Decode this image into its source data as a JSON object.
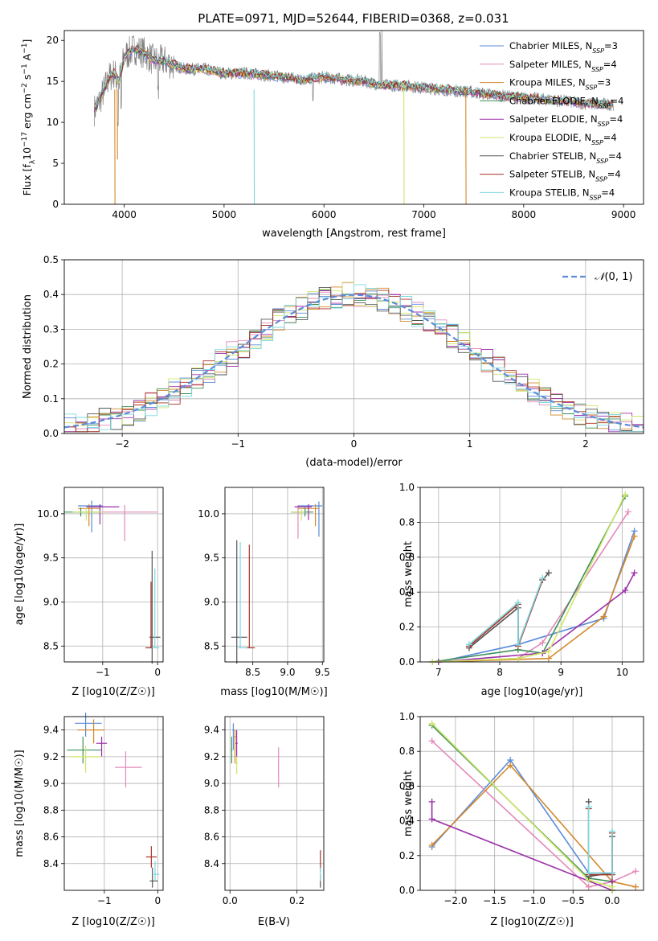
{
  "figure": {
    "title": "PLATE=0971, MJD=52644, FIBERID=0368, z=0.031"
  },
  "model_names": [
    "Chabrier MILES",
    "Salpeter MILES",
    "Kroupa MILES",
    "Chabrier ELODIE",
    "Salpeter ELODIE",
    "Kroupa ELODIE",
    "Chabrier STELIB",
    "Salpeter STELIB",
    "Kroupa STELIB"
  ],
  "model_nssp": [
    3,
    4,
    3,
    4,
    4,
    4,
    4,
    4,
    4
  ],
  "model_colors": [
    "#5b8bd9",
    "#e389b9",
    "#d4882a",
    "#3d8f58",
    "#9b30a8",
    "#cfe66a",
    "#555555",
    "#a83225",
    "#7dd8df"
  ],
  "chart_data": [
    {
      "type": "line",
      "title": "PLATE=0971, MJD=52644, FIBERID=0368, z=0.031",
      "xlabel": "wavelength [Angstrom, rest frame]",
      "ylabel": "Flux [f_λ 10^-17 erg cm^-2 s^-1 A^-1]",
      "xlim": [
        3400,
        9200
      ],
      "ylim": [
        0,
        21.2
      ],
      "xticks": [
        4000,
        5000,
        6000,
        7000,
        8000,
        9000
      ],
      "yticks": [
        0,
        5,
        10,
        15,
        20
      ],
      "grid": false,
      "legend_position": "top-right",
      "spectrum_outline": {
        "x": [
          3700,
          3750,
          3800,
          3850,
          3900,
          3950,
          4000,
          4100,
          4200,
          4300,
          4400,
          4500,
          4600,
          4800,
          5000,
          5200,
          5400,
          5600,
          5800,
          6000,
          6200,
          6400,
          6600,
          6800,
          7000,
          7200,
          7400,
          7600,
          7800,
          8000,
          8200,
          8400,
          8600,
          8800,
          8900
        ],
        "y": [
          11.5,
          12.5,
          14.0,
          15.5,
          16.0,
          15.0,
          18.0,
          19.0,
          18.5,
          17.5,
          17.5,
          17.0,
          16.5,
          16.5,
          16.0,
          16.0,
          15.8,
          15.5,
          15.2,
          15.5,
          15.2,
          15.0,
          14.5,
          14.5,
          14.2,
          14.0,
          13.8,
          13.5,
          13.2,
          13.0,
          12.8,
          12.6,
          12.3,
          12.2,
          12.2
        ]
      }
    },
    {
      "type": "bar",
      "xlabel": "(data-model)/error",
      "ylabel": "Normed distribution",
      "xlim": [
        -2.5,
        2.5
      ],
      "ylim": [
        0,
        0.5
      ],
      "xticks": [
        -2,
        -1,
        0,
        1,
        2
      ],
      "yticks": [
        0,
        0.1,
        0.2,
        0.3,
        0.4,
        0.5
      ],
      "grid": true,
      "legend_position": "top-right",
      "reference_curve": "N(0,1)",
      "bin_width": 0.1
    },
    {
      "type": "scatter",
      "xlabel": "Z [log10(Z/Z☉)]",
      "ylabel": "age [log10(age/yr)]",
      "xlim": [
        -1.7,
        0.1
      ],
      "ylim": [
        8.32,
        10.3
      ],
      "xticks": [
        -1,
        0
      ],
      "yticks": [
        8.5,
        9.0,
        9.5,
        10.0
      ],
      "grid": true,
      "series": [
        {
          "x": -1.2,
          "y": 10.09
        },
        {
          "x": -0.6,
          "y": 10.02
        },
        {
          "x": -1.25,
          "y": 10.06
        },
        {
          "x": -1.4,
          "y": 10.02
        },
        {
          "x": -1.05,
          "y": 10.08
        },
        {
          "x": -1.3,
          "y": 10.02
        },
        {
          "x": -0.1,
          "y": 8.6
        },
        {
          "x": -0.12,
          "y": 8.48
        },
        {
          "x": -0.05,
          "y": 8.48
        }
      ]
    },
    {
      "type": "scatter",
      "xlabel": "mass [log10(M/M☉)]",
      "xlim": [
        8.1,
        9.52
      ],
      "ylim": [
        8.32,
        10.3
      ],
      "xticks": [
        8.5,
        9.0,
        9.5
      ],
      "yticks": [
        8.5,
        9.0,
        9.5,
        10.0
      ],
      "grid": true,
      "series": [
        {
          "x": 9.45,
          "y": 10.09
        },
        {
          "x": 9.15,
          "y": 10.02
        },
        {
          "x": 9.4,
          "y": 10.06
        },
        {
          "x": 9.25,
          "y": 10.02
        },
        {
          "x": 9.3,
          "y": 10.08
        },
        {
          "x": 9.2,
          "y": 10.02
        },
        {
          "x": 8.27,
          "y": 8.6
        },
        {
          "x": 8.45,
          "y": 8.48
        },
        {
          "x": 8.32,
          "y": 8.48
        }
      ]
    },
    {
      "type": "line",
      "xlabel": "age [log10(age/yr)]",
      "ylabel": "mass weight",
      "xlim": [
        6.7,
        10.35
      ],
      "ylim": [
        0,
        1
      ],
      "xticks": [
        7,
        8,
        9,
        10
      ],
      "yticks": [
        0.0,
        0.2,
        0.4,
        0.6,
        0.8,
        1.0
      ],
      "grid": true,
      "series": [
        {
          "name": "",
          "x": [
            7.0,
            8.3,
            9.7,
            10.2
          ],
          "y": [
            0.0,
            0.1,
            0.25,
            0.75
          ]
        },
        {
          "name": "",
          "x": [
            6.9,
            8.3,
            8.7,
            10.1
          ],
          "y": [
            0.0,
            0.02,
            0.11,
            0.86
          ]
        },
        {
          "name": "",
          "x": [
            7.0,
            8.8,
            9.7,
            10.2
          ],
          "y": [
            0.0,
            0.02,
            0.26,
            0.72
          ]
        },
        {
          "name": "",
          "x": [
            6.9,
            8.3,
            8.7,
            10.05
          ],
          "y": [
            0.0,
            0.07,
            0.05,
            0.95
          ]
        },
        {
          "name": "",
          "x": [
            7.0,
            8.7,
            10.05,
            10.2
          ],
          "y": [
            0.0,
            0.05,
            0.41,
            0.51
          ]
        },
        {
          "name": "",
          "x": [
            6.9,
            8.3,
            8.8,
            10.05
          ],
          "y": [
            0.0,
            0.02,
            0.06,
            0.96
          ]
        },
        {
          "name": "",
          "x": [
            7.5,
            8.3,
            8.3,
            8.7,
            8.8
          ],
          "y": [
            0.08,
            0.31,
            0.1,
            0.47,
            0.51
          ]
        },
        {
          "name": "",
          "x": [
            7.5,
            8.3,
            8.3,
            8.7
          ],
          "y": [
            0.09,
            0.33,
            0.09,
            0.47
          ]
        },
        {
          "name": "",
          "x": [
            7.5,
            8.3,
            8.3,
            8.7
          ],
          "y": [
            0.1,
            0.34,
            0.1,
            0.48
          ]
        }
      ]
    },
    {
      "type": "scatter",
      "xlabel": "Z [log10(Z/Z☉)]",
      "ylabel": "mass [log10(M/M☉)]",
      "xlim": [
        -1.75,
        0.1
      ],
      "ylim": [
        8.2,
        9.5
      ],
      "xticks": [
        -1,
        0
      ],
      "yticks": [
        8.4,
        8.6,
        8.8,
        9.0,
        9.2,
        9.4
      ],
      "grid": true,
      "series": [
        {
          "x": -1.35,
          "y": 9.45
        },
        {
          "x": -0.6,
          "y": 9.12
        },
        {
          "x": -1.2,
          "y": 9.4
        },
        {
          "x": -1.4,
          "y": 9.25
        },
        {
          "x": -1.05,
          "y": 9.3
        },
        {
          "x": -1.35,
          "y": 9.2
        },
        {
          "x": -0.1,
          "y": 8.27
        },
        {
          "x": -0.12,
          "y": 8.45
        },
        {
          "x": -0.05,
          "y": 8.32
        }
      ]
    },
    {
      "type": "scatter",
      "xlabel": "E(B-V)",
      "xlim": [
        -0.015,
        0.28
      ],
      "ylim": [
        8.2,
        9.5
      ],
      "xticks": [
        0.0,
        0.2
      ],
      "yticks": [
        8.4,
        8.6,
        8.8,
        9.0,
        9.2,
        9.4
      ],
      "grid": true,
      "series": [
        {
          "x": 0.01,
          "y": 9.4
        },
        {
          "x": 0.145,
          "y": 9.12
        },
        {
          "x": 0.015,
          "y": 9.35
        },
        {
          "x": 0.005,
          "y": 9.25
        },
        {
          "x": 0.02,
          "y": 9.3
        },
        {
          "x": 0.02,
          "y": 9.15
        },
        {
          "x": 0.27,
          "y": 8.27
        },
        {
          "x": 0.27,
          "y": 8.42
        },
        {
          "x": 0.27,
          "y": 8.32
        }
      ]
    },
    {
      "type": "line",
      "xlabel": "Z [log10(Z/Z☉)]",
      "ylabel": "mass weight",
      "xlim": [
        -2.45,
        0.4
      ],
      "ylim": [
        0,
        1
      ],
      "xticks": [
        -2.0,
        -1.5,
        -1.0,
        -0.5,
        0.0
      ],
      "yticks": [
        0.0,
        0.2,
        0.4,
        0.6,
        0.8,
        1.0
      ],
      "grid": true,
      "series": [
        {
          "name": "",
          "x": [
            -2.3,
            -1.3,
            -0.3,
            0.0
          ],
          "y": [
            0.25,
            0.75,
            0.1,
            0.1
          ]
        },
        {
          "name": "",
          "x": [
            -2.3,
            -0.3,
            0.0,
            0.3
          ],
          "y": [
            0.86,
            0.02,
            0.05,
            0.11
          ]
        },
        {
          "name": "",
          "x": [
            -2.3,
            -1.3,
            0.0,
            0.3
          ],
          "y": [
            0.26,
            0.72,
            0.05,
            0.02
          ]
        },
        {
          "name": "",
          "x": [
            -2.3,
            -0.3,
            0.0,
            0.0
          ],
          "y": [
            0.95,
            0.07,
            0.05,
            0.0
          ]
        },
        {
          "name": "",
          "x": [
            -2.3,
            -2.3,
            0.0,
            0.0
          ],
          "y": [
            0.51,
            0.41,
            0.0,
            0.05
          ]
        },
        {
          "name": "",
          "x": [
            -2.3,
            -0.3,
            0.0,
            0.0
          ],
          "y": [
            0.96,
            0.06,
            0.02,
            0.0
          ]
        },
        {
          "name": "",
          "x": [
            -0.3,
            -0.3,
            0.0,
            0.0
          ],
          "y": [
            0.51,
            0.08,
            0.1,
            0.31
          ]
        },
        {
          "name": "",
          "x": [
            -0.3,
            -0.3,
            0.0,
            0.0
          ],
          "y": [
            0.47,
            0.09,
            0.09,
            0.33
          ]
        },
        {
          "name": "",
          "x": [
            -0.3,
            -0.3,
            0.0,
            0.0
          ],
          "y": [
            0.48,
            0.1,
            0.1,
            0.34
          ]
        }
      ]
    }
  ]
}
